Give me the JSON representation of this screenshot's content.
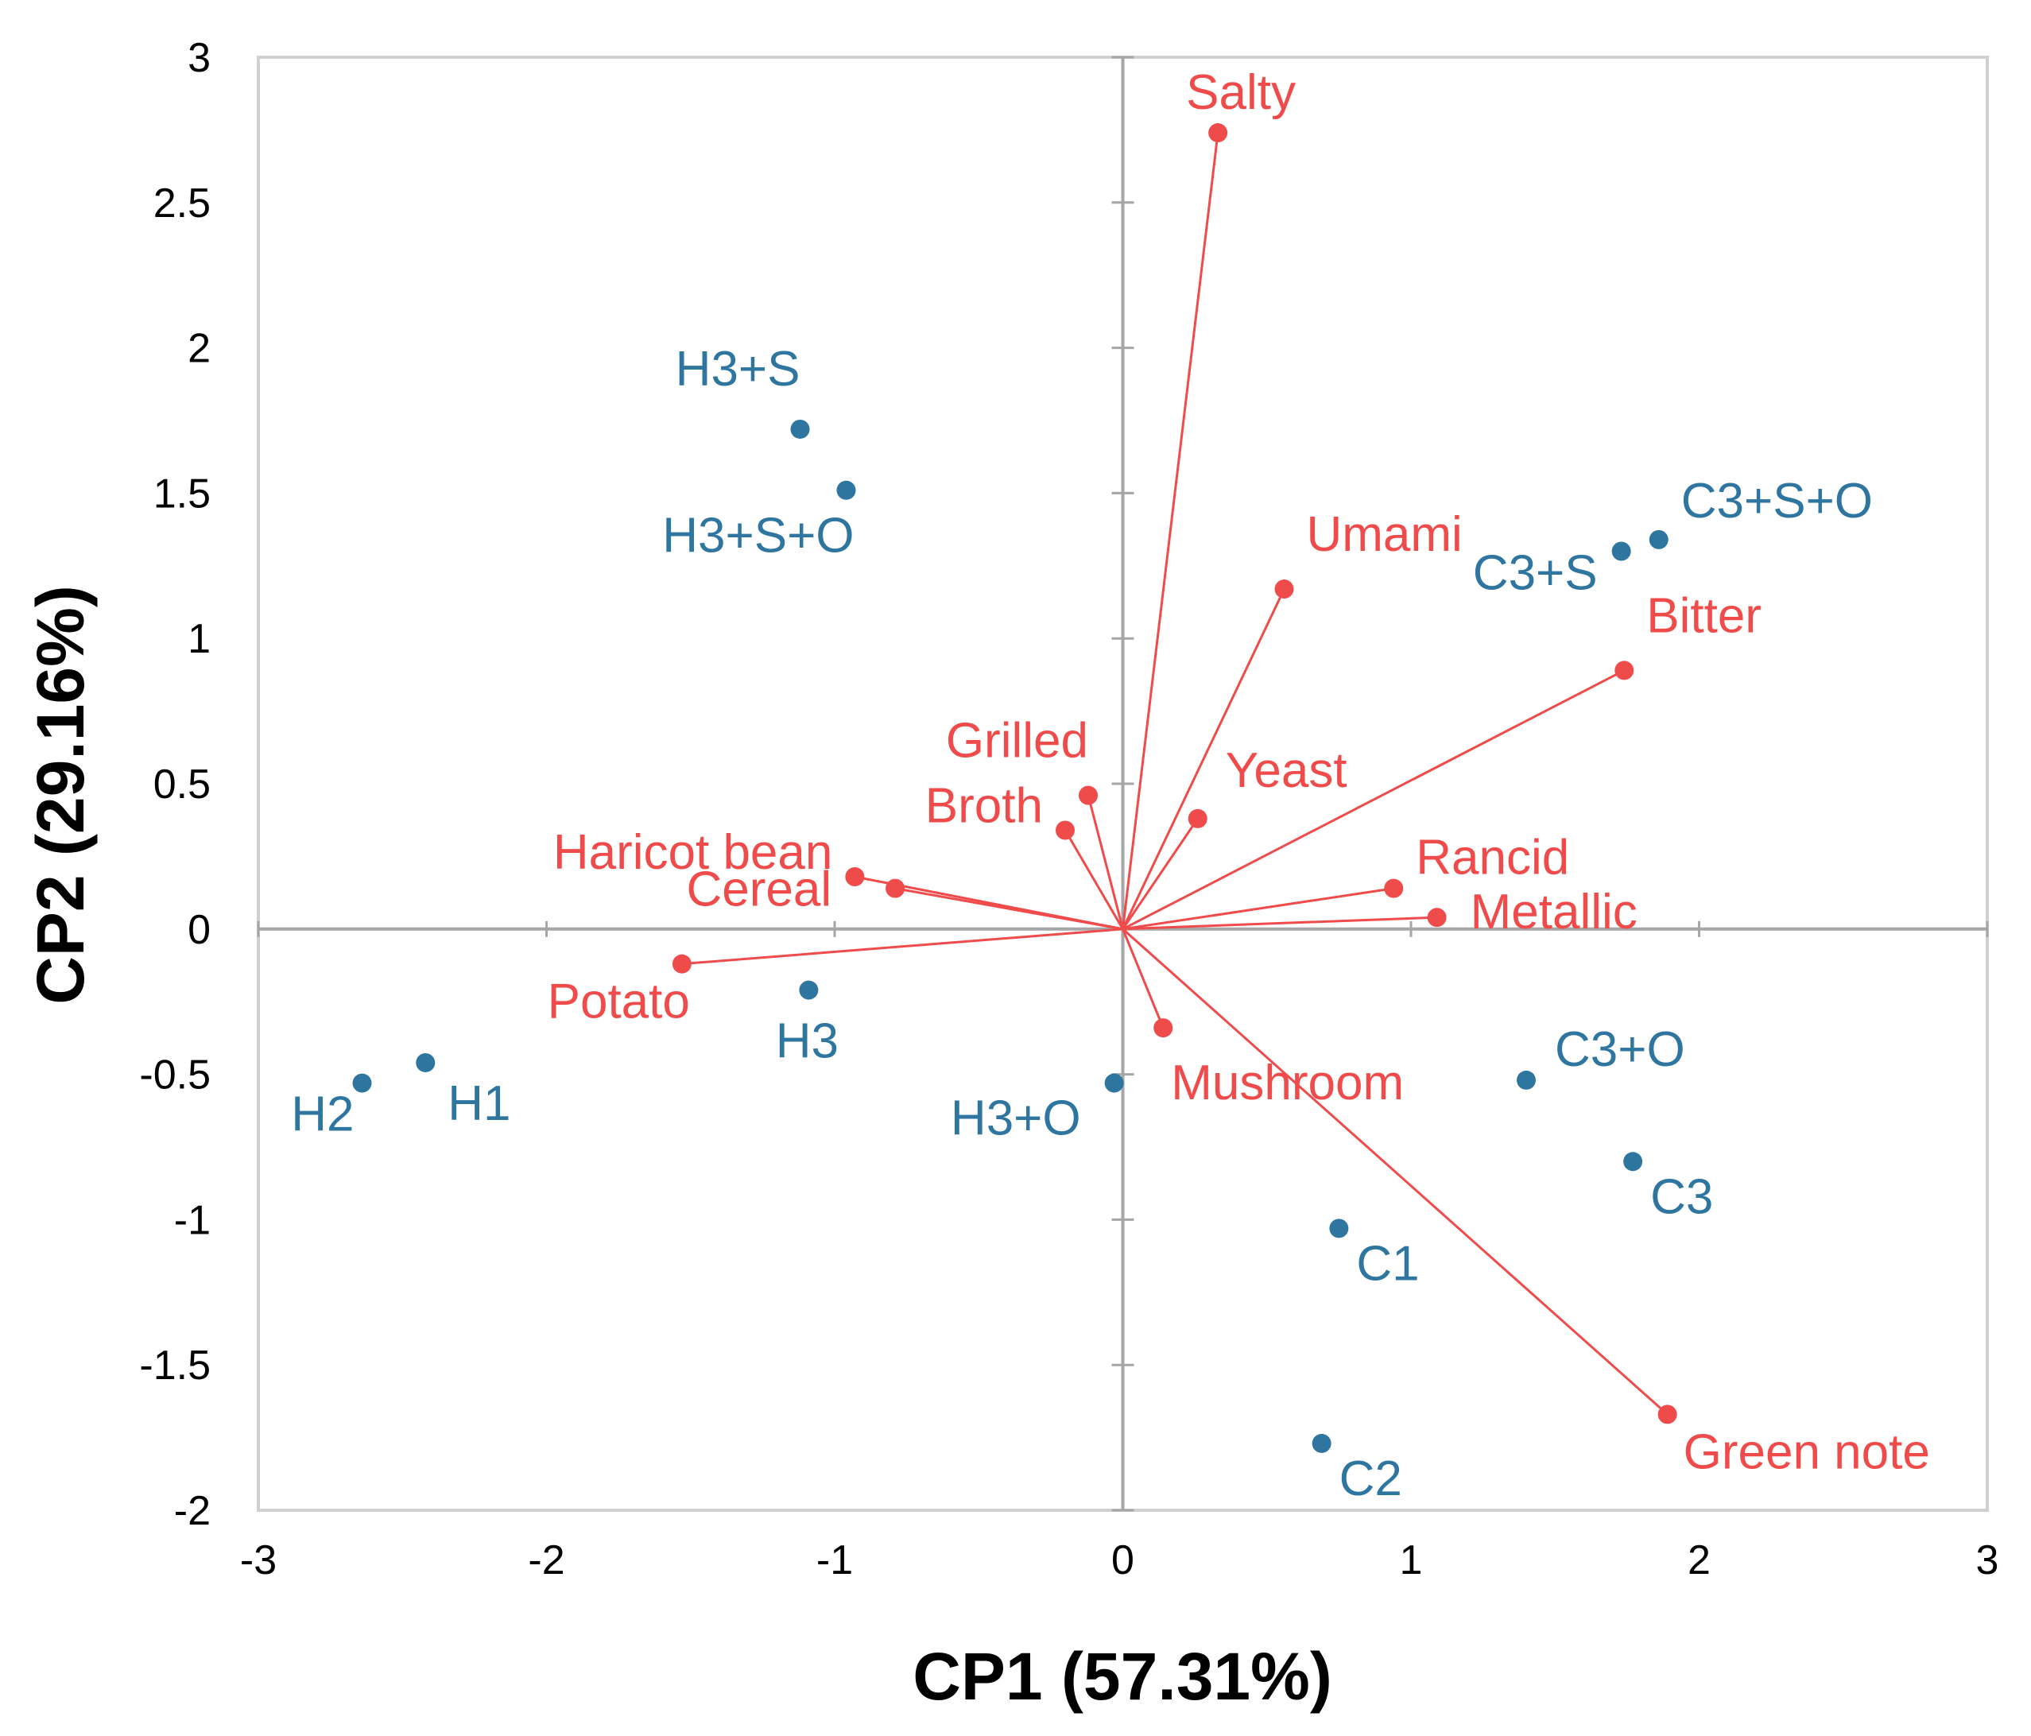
{
  "chart_data": {
    "type": "scatter",
    "subtype": "pca-biplot",
    "title": "",
    "xlabel": "CP1 (57.31%)",
    "ylabel": "CP2 (29.16%)",
    "xlim": [
      -3,
      3
    ],
    "ylim": [
      -2,
      3
    ],
    "xticks": [
      "-3",
      "-2",
      "-1",
      "0",
      "1",
      "2",
      "3"
    ],
    "yticks": [
      "-2",
      "-1.5",
      "-1",
      "-0.5",
      "0",
      "0.5",
      "1",
      "1.5",
      "2",
      "2.5",
      "3"
    ],
    "grid": false,
    "colors": {
      "observations": "#2e75a0",
      "variables": "#f04b4b",
      "axes": "#a6a6a6",
      "frame": "#d0d0d0"
    },
    "series": [
      {
        "name": "Samples",
        "kind": "points",
        "points": [
          {
            "label": "H3+S",
            "x": -1.12,
            "y": 1.72
          },
          {
            "label": "H3+S+O",
            "x": -0.96,
            "y": 1.51
          },
          {
            "label": "C3+S+O",
            "x": 1.86,
            "y": 1.34
          },
          {
            "label": "C3+S",
            "x": 1.73,
            "y": 1.3
          },
          {
            "label": "H3",
            "x": -1.09,
            "y": -0.21
          },
          {
            "label": "H1",
            "x": -2.42,
            "y": -0.46
          },
          {
            "label": "H2",
            "x": -2.64,
            "y": -0.53
          },
          {
            "label": "H3+O",
            "x": -0.03,
            "y": -0.53
          },
          {
            "label": "C3+O",
            "x": 1.4,
            "y": -0.52
          },
          {
            "label": "C3",
            "x": 1.77,
            "y": -0.8
          },
          {
            "label": "C1",
            "x": 0.75,
            "y": -1.03
          },
          {
            "label": "C2",
            "x": 0.69,
            "y": -1.77
          }
        ]
      },
      {
        "name": "Attributes",
        "kind": "vectors",
        "points": [
          {
            "label": "Salty",
            "x": 0.33,
            "y": 2.74
          },
          {
            "label": "Umami",
            "x": 0.56,
            "y": 1.17
          },
          {
            "label": "Bitter",
            "x": 1.74,
            "y": 0.89
          },
          {
            "label": "Grilled",
            "x": -0.12,
            "y": 0.46
          },
          {
            "label": "Yeast",
            "x": 0.26,
            "y": 0.38
          },
          {
            "label": "Broth",
            "x": -0.2,
            "y": 0.34
          },
          {
            "label": "Haricot bean",
            "x": -0.93,
            "y": 0.18
          },
          {
            "label": "Cereal",
            "x": -0.79,
            "y": 0.14
          },
          {
            "label": "Rancid",
            "x": 0.94,
            "y": 0.14
          },
          {
            "label": "Metallic",
            "x": 1.09,
            "y": 0.04
          },
          {
            "label": "Potato",
            "x": -1.53,
            "y": -0.12
          },
          {
            "label": "Mushroom",
            "x": 0.14,
            "y": -0.34
          },
          {
            "label": "Green note",
            "x": 1.89,
            "y": -1.67
          }
        ]
      }
    ]
  }
}
